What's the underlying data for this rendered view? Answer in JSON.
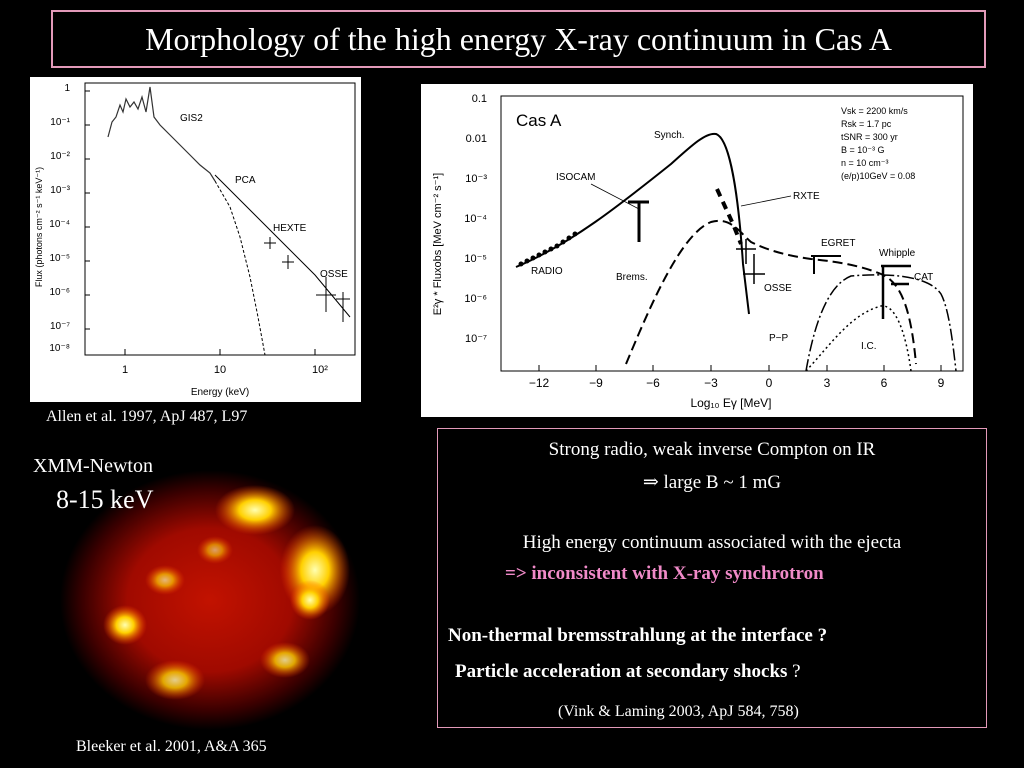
{
  "title": "Morphology of the high energy X-ray continuum in Cas A",
  "left_figure": {
    "ylabel": "Flux (photons cm⁻² s⁻¹ keV⁻¹)",
    "xlabel": "Energy (keV)",
    "y_ticks": [
      "1",
      "10⁻¹",
      "10⁻²",
      "10⁻³",
      "10⁻⁴",
      "10⁻⁵",
      "10⁻⁶",
      "10⁻⁷",
      "10⁻⁸"
    ],
    "x_ticks": [
      "1",
      "10",
      "10²"
    ],
    "labels": [
      "GIS2",
      "PCA",
      "HEXTE",
      "OSSE"
    ],
    "caption": "Allen et al. 1997, ApJ 487, L97"
  },
  "right_figure": {
    "name": "Cas A",
    "ylabel": "E²γ * Fluxobs [MeV cm⁻² s⁻¹]",
    "xlabel": "Log₁₀ Eγ [MeV]",
    "y_ticks": [
      "0.1",
      "0.01",
      "10⁻³",
      "10⁻⁴",
      "10⁻⁵",
      "10⁻⁶",
      "10⁻⁷"
    ],
    "x_ticks": [
      "−12",
      "−9",
      "−6",
      "−3",
      "0",
      "3",
      "6",
      "9"
    ],
    "params": [
      "Vsk = 2200 km/s",
      "Rsk = 1.7 pc",
      "tSNR = 300 yr",
      "B = 10⁻³ G",
      "n = 10 cm⁻³",
      "(e/p)10GeV = 0.08"
    ],
    "labels": {
      "synch": "Synch.",
      "isocam": "ISOCAM",
      "rxte": "RXTE",
      "egret": "EGRET",
      "whipple": "Whipple",
      "cat": "CAT",
      "radio": "RADIO",
      "brems": "Brems.",
      "osse": "OSSE",
      "pp": "P−P",
      "ic": "I.C."
    }
  },
  "xmm": {
    "label": "XMM-Newton",
    "band": "8-15 keV",
    "caption": "Bleeker et al. 2001, A&A 365"
  },
  "notes": {
    "line1": "Strong radio, weak inverse Compton on IR",
    "line2": "⇒ large B ~ 1 mG",
    "line3": "High energy continuum associated with the ejecta",
    "line4": "=> inconsistent with X-ray synchrotron",
    "line5": "Non-thermal bremsstrahlung at the interface ?",
    "line6_bold": "Particle acceleration at secondary shocks",
    "line6_rest": " ?",
    "line7": "(Vink & Laming 2003, ApJ 584, 758)"
  }
}
